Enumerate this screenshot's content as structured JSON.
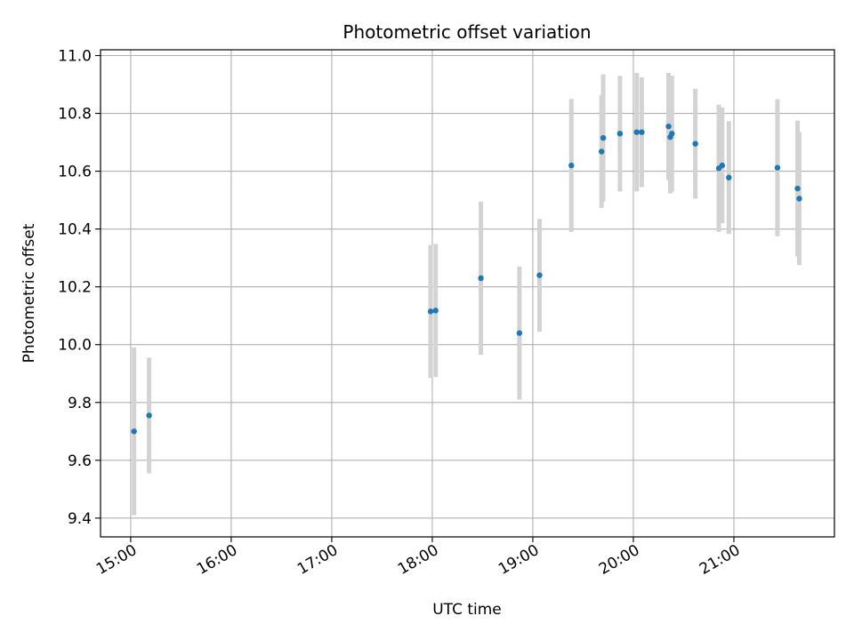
{
  "chart_data": {
    "type": "scatter",
    "title": "Photometric offset variation",
    "xlabel": "UTC time",
    "ylabel": "Photometric offset",
    "xlim": [
      "14:42",
      "22:00"
    ],
    "ylim": [
      9.335,
      11.02
    ],
    "grid": true,
    "x_ticks": [
      "15:00",
      "16:00",
      "17:00",
      "18:00",
      "19:00",
      "20:00",
      "21:00"
    ],
    "y_ticks": [
      "9.4",
      "9.6",
      "9.8",
      "10.0",
      "10.2",
      "10.4",
      "10.6",
      "10.8",
      "11.0"
    ],
    "marker_color": "#1f77b4",
    "errorbar_color": "#d3d3d3",
    "series": [
      {
        "points": [
          {
            "x": "15:02",
            "y": 9.7,
            "err": 0.29
          },
          {
            "x": "15:11",
            "y": 9.755,
            "err": 0.2
          },
          {
            "x": "17:59",
            "y": 10.115,
            "err": 0.23
          },
          {
            "x": "18:02",
            "y": 10.118,
            "err": 0.23
          },
          {
            "x": "18:29",
            "y": 10.23,
            "err": 0.265
          },
          {
            "x": "18:52",
            "y": 10.04,
            "err": 0.23
          },
          {
            "x": "19:04",
            "y": 10.24,
            "err": 0.195
          },
          {
            "x": "19:23",
            "y": 10.62,
            "err": 0.23
          },
          {
            "x": "19:41",
            "y": 10.668,
            "err": 0.195
          },
          {
            "x": "19:42",
            "y": 10.715,
            "err": 0.22
          },
          {
            "x": "19:52",
            "y": 10.73,
            "err": 0.2
          },
          {
            "x": "20:02",
            "y": 10.735,
            "err": 0.205
          },
          {
            "x": "20:05",
            "y": 10.735,
            "err": 0.19
          },
          {
            "x": "20:21",
            "y": 10.755,
            "err": 0.185
          },
          {
            "x": "20:22",
            "y": 10.718,
            "err": 0.195
          },
          {
            "x": "20:23",
            "y": 10.73,
            "err": 0.2
          },
          {
            "x": "20:37",
            "y": 10.695,
            "err": 0.19
          },
          {
            "x": "20:51",
            "y": 10.61,
            "err": 0.22
          },
          {
            "x": "20:53",
            "y": 10.62,
            "err": 0.2
          },
          {
            "x": "20:57",
            "y": 10.578,
            "err": 0.195
          },
          {
            "x": "21:26",
            "y": 10.612,
            "err": 0.237
          },
          {
            "x": "21:38",
            "y": 10.54,
            "err": 0.235
          },
          {
            "x": "21:39",
            "y": 10.505,
            "err": 0.23
          }
        ]
      }
    ]
  }
}
